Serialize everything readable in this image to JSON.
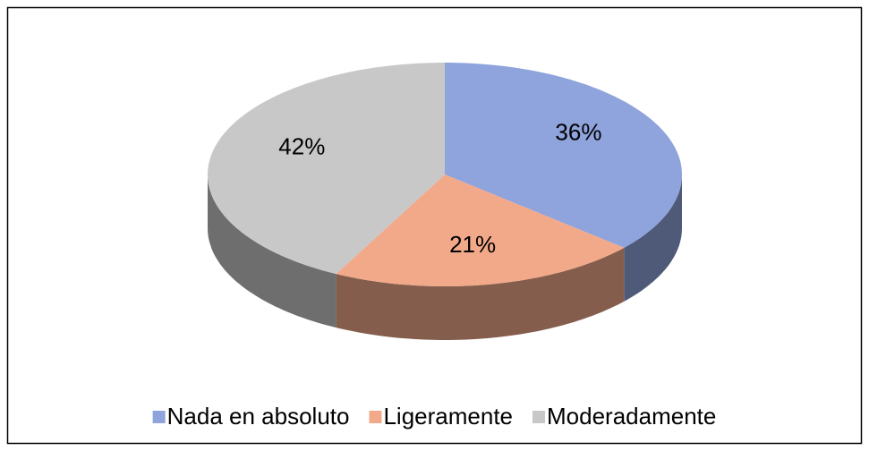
{
  "chart_data": {
    "type": "pie",
    "categories": [
      "Nada en absoluto",
      "Ligeramente",
      "Moderadamente"
    ],
    "values": [
      36,
      21,
      42
    ],
    "value_labels": [
      "36%",
      "21%",
      "42%"
    ],
    "colors": [
      "#8fa3dc",
      "#f2a98a",
      "#c8c8c8"
    ],
    "legend": "bottom"
  }
}
